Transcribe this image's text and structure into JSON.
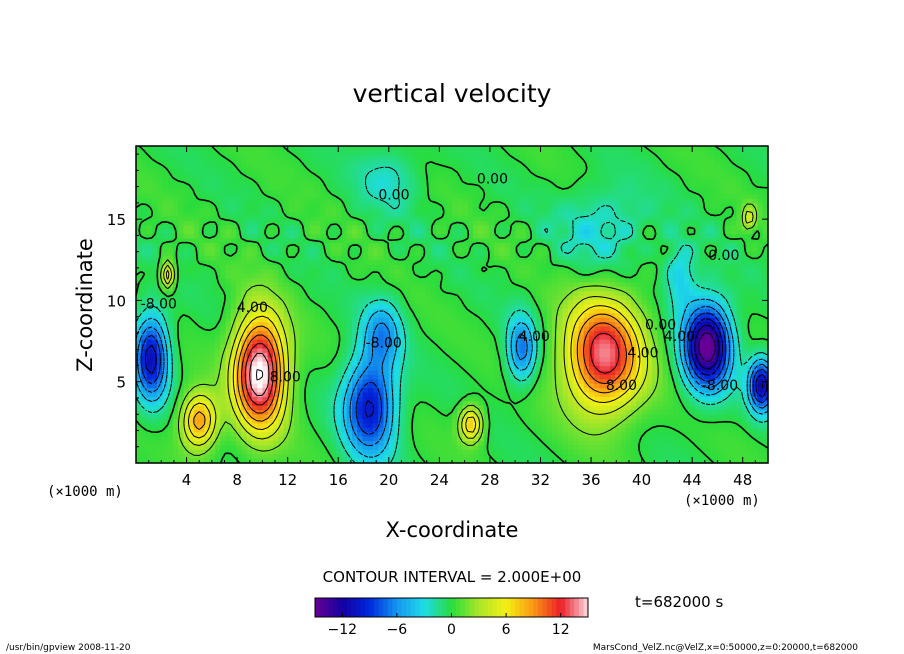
{
  "chart_data": {
    "type": "heatmap",
    "title": "vertical velocity",
    "xlabel": "X-coordinate",
    "ylabel": "Z-coordinate",
    "x_unit_label": "(×1000 m)",
    "z_unit_label": "(×1000 m)",
    "xlim": [
      0,
      50
    ],
    "ylim": [
      0,
      19.5
    ],
    "x_ticks": [
      4,
      8,
      12,
      16,
      20,
      24,
      28,
      32,
      36,
      40,
      44,
      48
    ],
    "x_tick_labels": [
      "4",
      "8",
      "12",
      "16",
      "20",
      "24",
      "28",
      "32",
      "36",
      "40",
      "44",
      "48"
    ],
    "y_ticks": [
      5,
      10,
      15
    ],
    "y_tick_labels": [
      "5",
      "10",
      "15"
    ],
    "contour_interval_text": "CONTOUR INTERVAL = 2.000E+00",
    "time_text": "t=682000 s",
    "colorbar": {
      "ticks": [
        -12,
        -6,
        0,
        6,
        12
      ],
      "tick_labels": [
        "−12",
        "−6",
        "0",
        "6",
        "12"
      ],
      "range": [
        -15,
        15
      ]
    },
    "contour_labels": [
      {
        "text": "4.00",
        "x": 9.2,
        "z": 9.3
      },
      {
        "text": "8.00",
        "x": 11.8,
        "z": 5.0
      },
      {
        "text": "-8.00",
        "x": 19.6,
        "z": 7.1
      },
      {
        "text": "0.00",
        "x": 20.4,
        "z": 16.2
      },
      {
        "text": "0.00",
        "x": 28.2,
        "z": 17.2
      },
      {
        "text": "4.00",
        "x": 31.5,
        "z": 7.5
      },
      {
        "text": "8.00",
        "x": 38.4,
        "z": 4.5
      },
      {
        "text": "4.00",
        "x": 40.1,
        "z": 6.5
      },
      {
        "text": "0.00",
        "x": 41.5,
        "z": 8.2
      },
      {
        "text": "4.00",
        "x": 43.0,
        "z": 7.5
      },
      {
        "text": "0.00",
        "x": 46.5,
        "z": 12.5
      },
      {
        "text": "-8.00",
        "x": 46.2,
        "z": 4.5
      },
      {
        "text": "-8.00",
        "x": 1.8,
        "z": 9.5
      }
    ],
    "features": [
      {
        "x": 9.8,
        "z": 5.6,
        "amp": 16.5,
        "sx": 2.0,
        "sz": 3.4
      },
      {
        "x": 37.0,
        "z": 6.6,
        "amp": 13.5,
        "sx": 3.0,
        "sz": 3.4
      },
      {
        "x": 5.0,
        "z": 2.6,
        "amp": 9.5,
        "sx": 1.4,
        "sz": 1.7
      },
      {
        "x": 26.5,
        "z": 2.4,
        "amp": 8.0,
        "sx": 0.9,
        "sz": 1.1
      },
      {
        "x": 2.5,
        "z": 11.6,
        "amp": 8.0,
        "sx": 0.5,
        "sz": 0.8
      },
      {
        "x": 48.5,
        "z": 15.0,
        "amp": 5.0,
        "sx": 0.5,
        "sz": 0.8
      },
      {
        "x": 45.2,
        "z": 7.2,
        "amp": -15.5,
        "sx": 1.8,
        "sz": 2.6
      },
      {
        "x": 18.5,
        "z": 3.5,
        "amp": -10.5,
        "sx": 2.0,
        "sz": 3.0
      },
      {
        "x": 19.5,
        "z": 8.0,
        "amp": -5.5,
        "sx": 1.5,
        "sz": 2.0
      },
      {
        "x": 1.2,
        "z": 6.5,
        "amp": -11.0,
        "sx": 1.3,
        "sz": 2.6
      },
      {
        "x": 49.5,
        "z": 4.8,
        "amp": -12.0,
        "sx": 1.0,
        "sz": 1.6
      },
      {
        "x": 30.5,
        "z": 7.0,
        "amp": -7.0,
        "sx": 1.1,
        "sz": 2.0
      },
      {
        "x": 43.0,
        "z": 11.5,
        "amp": -4.0,
        "sx": 1.2,
        "sz": 2.0
      },
      {
        "x": 37.0,
        "z": 14.5,
        "amp": -3.0,
        "sx": 3.5,
        "sz": 2.5
      },
      {
        "x": 20.0,
        "z": 17.5,
        "amp": -2.5,
        "sx": 2.5,
        "sz": 2.0
      }
    ]
  },
  "footer": {
    "left": "/usr/bin/gpview   2008-11-20",
    "right": "MarsCond_VelZ.nc@VelZ,x=0:50000,z=0:20000,t=682000"
  }
}
